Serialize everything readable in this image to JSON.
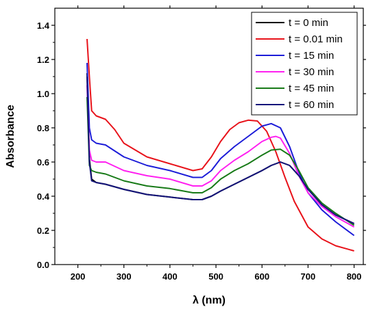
{
  "chart_data": {
    "type": "line",
    "title": "",
    "xlabel": "λ (nm)",
    "ylabel": "Absorbance",
    "xlim": [
      150,
      820
    ],
    "ylim": [
      0.0,
      1.5
    ],
    "xticks": [
      200,
      300,
      400,
      500,
      600,
      700,
      800
    ],
    "yticks": [
      0.0,
      0.2,
      0.4,
      0.6,
      0.8,
      1.0,
      1.2,
      1.4
    ],
    "ytick_labels": [
      "0.0",
      "0.2",
      "0.4",
      "0.6",
      "0.8",
      "1.0",
      "1.2",
      "1.4"
    ],
    "grid": false,
    "legend_position": "top-right",
    "series": [
      {
        "name": "t = 0 min",
        "color": "#000000",
        "x": [
          220,
          225,
          230,
          240,
          260,
          300,
          350,
          400,
          450,
          470,
          490,
          510,
          540,
          570,
          600,
          620,
          640,
          660,
          680,
          700,
          730,
          760,
          800
        ],
        "y": [
          1.12,
          0.62,
          0.5,
          0.48,
          0.47,
          0.44,
          0.41,
          0.395,
          0.38,
          0.38,
          0.4,
          0.43,
          0.47,
          0.51,
          0.55,
          0.58,
          0.6,
          0.58,
          0.52,
          0.44,
          0.35,
          0.29,
          0.24
        ]
      },
      {
        "name": "t = 0.01 min",
        "color": "#e8121a",
        "x": [
          220,
          225,
          230,
          240,
          260,
          280,
          300,
          350,
          400,
          450,
          470,
          490,
          510,
          530,
          550,
          570,
          590,
          610,
          630,
          650,
          670,
          700,
          730,
          760,
          800
        ],
        "y": [
          1.32,
          1.1,
          0.9,
          0.87,
          0.85,
          0.79,
          0.71,
          0.63,
          0.59,
          0.55,
          0.56,
          0.63,
          0.72,
          0.79,
          0.83,
          0.845,
          0.84,
          0.78,
          0.66,
          0.51,
          0.37,
          0.22,
          0.15,
          0.11,
          0.08
        ]
      },
      {
        "name": "t = 15 min",
        "color": "#1c1cd8",
        "x": [
          220,
          225,
          230,
          240,
          260,
          300,
          350,
          400,
          450,
          470,
          490,
          510,
          540,
          570,
          600,
          620,
          640,
          660,
          680,
          700,
          730,
          760,
          800
        ],
        "y": [
          1.18,
          0.8,
          0.73,
          0.71,
          0.7,
          0.63,
          0.58,
          0.55,
          0.51,
          0.51,
          0.55,
          0.62,
          0.69,
          0.75,
          0.81,
          0.825,
          0.8,
          0.69,
          0.54,
          0.42,
          0.32,
          0.25,
          0.17
        ]
      },
      {
        "name": "t = 30 min",
        "color": "#ff1ff0",
        "x": [
          220,
          225,
          230,
          240,
          260,
          300,
          350,
          400,
          450,
          470,
          490,
          510,
          540,
          570,
          600,
          620,
          630,
          640,
          660,
          680,
          700,
          730,
          760,
          800
        ],
        "y": [
          1.05,
          0.67,
          0.61,
          0.6,
          0.6,
          0.55,
          0.52,
          0.5,
          0.46,
          0.46,
          0.49,
          0.55,
          0.61,
          0.66,
          0.72,
          0.745,
          0.75,
          0.74,
          0.65,
          0.52,
          0.42,
          0.34,
          0.28,
          0.22
        ]
      },
      {
        "name": "t = 45 min",
        "color": "#177a17",
        "x": [
          220,
          225,
          230,
          240,
          260,
          300,
          350,
          400,
          450,
          470,
          490,
          510,
          540,
          570,
          600,
          620,
          640,
          660,
          680,
          700,
          730,
          760,
          800
        ],
        "y": [
          0.98,
          0.58,
          0.55,
          0.54,
          0.53,
          0.49,
          0.46,
          0.445,
          0.42,
          0.42,
          0.45,
          0.5,
          0.55,
          0.59,
          0.64,
          0.67,
          0.675,
          0.64,
          0.55,
          0.45,
          0.36,
          0.3,
          0.23
        ]
      },
      {
        "name": "t = 60 min",
        "color": "#14147a",
        "x": [
          220,
          225,
          230,
          240,
          260,
          300,
          350,
          400,
          450,
          470,
          490,
          510,
          540,
          570,
          600,
          620,
          640,
          660,
          680,
          700,
          730,
          760,
          800
        ],
        "y": [
          1.1,
          0.6,
          0.49,
          0.48,
          0.47,
          0.44,
          0.41,
          0.395,
          0.38,
          0.38,
          0.4,
          0.43,
          0.47,
          0.51,
          0.55,
          0.58,
          0.6,
          0.58,
          0.52,
          0.44,
          0.35,
          0.29,
          0.24
        ]
      }
    ]
  }
}
